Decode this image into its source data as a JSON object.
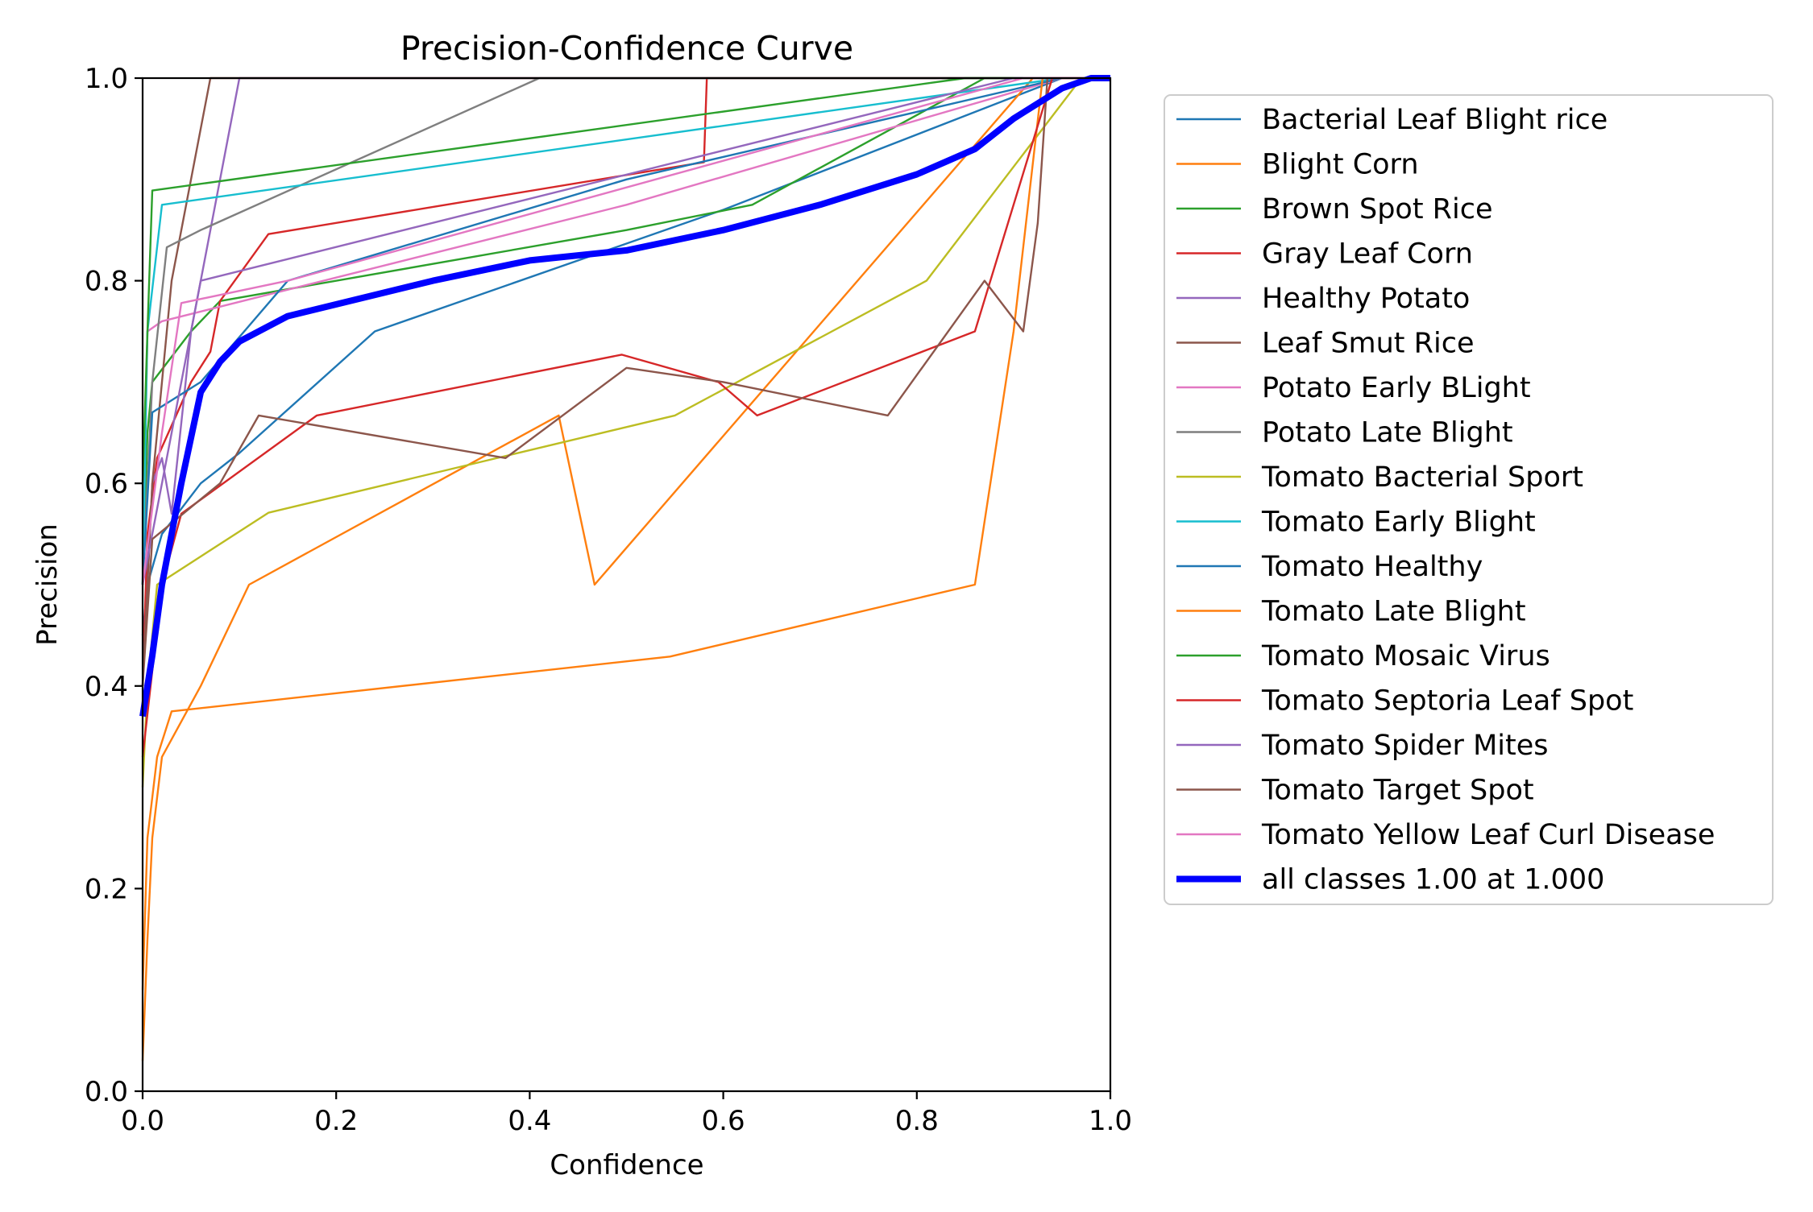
{
  "chart_data": {
    "type": "line",
    "title": "Precision-Confidence Curve",
    "xlabel": "Confidence",
    "ylabel": "Precision",
    "xlim": [
      0,
      1
    ],
    "ylim": [
      0,
      1
    ],
    "xticks": [
      "0.0",
      "0.2",
      "0.4",
      "0.6",
      "0.8",
      "1.0"
    ],
    "yticks": [
      "0.0",
      "0.2",
      "0.4",
      "0.6",
      "0.8",
      "1.0"
    ],
    "grid": false,
    "legend_position": "outside-right",
    "series": [
      {
        "name": "Bacterial Leaf Blight rice",
        "color": "#1f77b4",
        "points": [
          [
            0,
            0.45
          ],
          [
            0.005,
            0.5
          ],
          [
            0.02,
            0.55
          ],
          [
            0.06,
            0.6
          ],
          [
            0.1,
            0.63
          ],
          [
            0.24,
            0.75
          ],
          [
            0.6,
            0.87
          ],
          [
            0.95,
            1.0
          ],
          [
            1.0,
            1.0
          ]
        ]
      },
      {
        "name": "Blight Corn",
        "color": "#ff7f0e",
        "points": [
          [
            0,
            0.03
          ],
          [
            0.005,
            0.15
          ],
          [
            0.01,
            0.25
          ],
          [
            0.02,
            0.33
          ],
          [
            0.06,
            0.4
          ],
          [
            0.11,
            0.5
          ],
          [
            0.43,
            0.667
          ],
          [
            0.467,
            0.5
          ],
          [
            0.92,
            1.0
          ],
          [
            1.0,
            1.0
          ]
        ]
      },
      {
        "name": "Brown Spot Rice",
        "color": "#2ca02c",
        "points": [
          [
            0,
            0.5
          ],
          [
            0.005,
            0.65
          ],
          [
            0.01,
            0.7
          ],
          [
            0.05,
            0.75
          ],
          [
            0.08,
            0.78
          ],
          [
            0.5,
            0.85
          ],
          [
            0.63,
            0.875
          ],
          [
            0.87,
            1.0
          ],
          [
            1.0,
            1.0
          ]
        ]
      },
      {
        "name": "Gray Leaf Corn",
        "color": "#d62728",
        "points": [
          [
            0,
            0.4
          ],
          [
            0.005,
            0.55
          ],
          [
            0.015,
            0.625
          ],
          [
            0.05,
            0.7
          ],
          [
            0.07,
            0.73
          ],
          [
            0.08,
            0.78
          ],
          [
            0.13,
            0.846
          ],
          [
            0.58,
            0.917
          ],
          [
            0.583,
            1.0
          ],
          [
            1.0,
            1.0
          ]
        ]
      },
      {
        "name": "Healthy Potato",
        "color": "#9467bd",
        "points": [
          [
            0,
            0.4
          ],
          [
            0.01,
            0.6
          ],
          [
            0.02,
            0.625
          ],
          [
            0.03,
            0.57
          ],
          [
            0.05,
            0.75
          ],
          [
            0.09,
            0.95
          ],
          [
            0.1,
            1.0
          ],
          [
            1.0,
            1.0
          ]
        ]
      },
      {
        "name": "Leaf Smut Rice",
        "color": "#8c564b",
        "points": [
          [
            0,
            0.4
          ],
          [
            0.01,
            0.6
          ],
          [
            0.03,
            0.8
          ],
          [
            0.07,
            1.0
          ],
          [
            1.0,
            1.0
          ]
        ]
      },
      {
        "name": "Potato Early BLight",
        "color": "#e377c2",
        "points": [
          [
            0,
            0.5
          ],
          [
            0.005,
            0.75
          ],
          [
            0.02,
            0.76
          ],
          [
            0.5,
            0.875
          ],
          [
            0.95,
            1.0
          ],
          [
            1.0,
            1.0
          ]
        ]
      },
      {
        "name": "Potato Late Blight",
        "color": "#7f7f7f",
        "points": [
          [
            0,
            0.5
          ],
          [
            0.01,
            0.7
          ],
          [
            0.025,
            0.833
          ],
          [
            0.06,
            0.85
          ],
          [
            0.41,
            1.0
          ],
          [
            1.0,
            1.0
          ]
        ]
      },
      {
        "name": "Tomato Bacterial Sport",
        "color": "#bcbd22",
        "points": [
          [
            0,
            0.3
          ],
          [
            0.005,
            0.4
          ],
          [
            0.015,
            0.5
          ],
          [
            0.13,
            0.571
          ],
          [
            0.55,
            0.667
          ],
          [
            0.81,
            0.8
          ],
          [
            0.97,
            1.0
          ],
          [
            1.0,
            1.0
          ]
        ]
      },
      {
        "name": "Tomato Early Blight",
        "color": "#17becf",
        "points": [
          [
            0,
            0.5
          ],
          [
            0.005,
            0.75
          ],
          [
            0.02,
            0.875
          ],
          [
            0.95,
            1.0
          ],
          [
            1.0,
            1.0
          ]
        ]
      },
      {
        "name": "Tomato Healthy",
        "color": "#1f77b4",
        "points": [
          [
            0,
            0.5
          ],
          [
            0.01,
            0.67
          ],
          [
            0.06,
            0.7
          ],
          [
            0.15,
            0.8
          ],
          [
            0.5,
            0.9
          ],
          [
            0.95,
            1.0
          ],
          [
            1.0,
            1.0
          ]
        ]
      },
      {
        "name": "Tomato Late Blight",
        "color": "#ff7f0e",
        "points": [
          [
            0,
            0.1
          ],
          [
            0.005,
            0.25
          ],
          [
            0.015,
            0.33
          ],
          [
            0.03,
            0.375
          ],
          [
            0.545,
            0.429
          ],
          [
            0.86,
            0.5
          ],
          [
            0.9,
            0.75
          ],
          [
            0.93,
            1.0
          ],
          [
            1.0,
            1.0
          ]
        ]
      },
      {
        "name": "Tomato Mosaic Virus",
        "color": "#2ca02c",
        "points": [
          [
            0,
            0.6
          ],
          [
            0.005,
            0.75
          ],
          [
            0.01,
            0.889
          ],
          [
            0.85,
            1.0
          ],
          [
            1.0,
            1.0
          ]
        ]
      },
      {
        "name": "Tomato Septoria Leaf Spot",
        "color": "#d62728",
        "points": [
          [
            0,
            0.33
          ],
          [
            0.02,
            0.5
          ],
          [
            0.04,
            0.57
          ],
          [
            0.18,
            0.667
          ],
          [
            0.495,
            0.727
          ],
          [
            0.595,
            0.7
          ],
          [
            0.635,
            0.667
          ],
          [
            0.86,
            0.75
          ],
          [
            0.94,
            1.0
          ],
          [
            1.0,
            1.0
          ]
        ]
      },
      {
        "name": "Tomato Spider Mites",
        "color": "#9467bd",
        "points": [
          [
            0,
            0.5
          ],
          [
            0.02,
            0.6
          ],
          [
            0.06,
            0.8
          ],
          [
            0.9,
            1.0
          ],
          [
            1.0,
            1.0
          ]
        ]
      },
      {
        "name": "Tomato Target Spot",
        "color": "#8c564b",
        "points": [
          [
            0,
            0.4
          ],
          [
            0.01,
            0.545
          ],
          [
            0.08,
            0.6
          ],
          [
            0.12,
            0.667
          ],
          [
            0.375,
            0.625
          ],
          [
            0.5,
            0.714
          ],
          [
            0.6,
            0.7
          ],
          [
            0.77,
            0.667
          ],
          [
            0.87,
            0.8
          ],
          [
            0.91,
            0.75
          ],
          [
            0.925,
            0.857
          ],
          [
            0.935,
            1.0
          ],
          [
            1.0,
            1.0
          ]
        ]
      },
      {
        "name": "Tomato Yellow Leaf Curl Disease",
        "color": "#e377c2",
        "points": [
          [
            0,
            0.5
          ],
          [
            0.02,
            0.65
          ],
          [
            0.04,
            0.778
          ],
          [
            0.15,
            0.8
          ],
          [
            0.91,
            1.0
          ],
          [
            1.0,
            1.0
          ]
        ]
      },
      {
        "name": "all classes 1.00 at 1.000",
        "color": "#0000ff",
        "thick": true,
        "points": [
          [
            0,
            0.37
          ],
          [
            0.01,
            0.43
          ],
          [
            0.02,
            0.5
          ],
          [
            0.04,
            0.6
          ],
          [
            0.06,
            0.69
          ],
          [
            0.08,
            0.72
          ],
          [
            0.1,
            0.74
          ],
          [
            0.15,
            0.765
          ],
          [
            0.3,
            0.8
          ],
          [
            0.4,
            0.82
          ],
          [
            0.5,
            0.83
          ],
          [
            0.6,
            0.85
          ],
          [
            0.7,
            0.875
          ],
          [
            0.8,
            0.905
          ],
          [
            0.86,
            0.93
          ],
          [
            0.9,
            0.96
          ],
          [
            0.95,
            0.99
          ],
          [
            0.98,
            1.0
          ],
          [
            1.0,
            1.0
          ]
        ]
      }
    ]
  }
}
